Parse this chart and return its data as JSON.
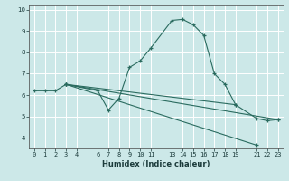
{
  "xlabel": "Humidex (Indice chaleur)",
  "background_color": "#cce8e8",
  "grid_color": "#ffffff",
  "line_color": "#2a6b5f",
  "series": [
    {
      "x": [
        0,
        1,
        2,
        3,
        6,
        7,
        8,
        9,
        10,
        11,
        13,
        14,
        15,
        16,
        17,
        18,
        19,
        21,
        22,
        23
      ],
      "y": [
        6.2,
        6.2,
        6.2,
        6.5,
        6.2,
        5.3,
        5.85,
        7.3,
        7.6,
        8.2,
        9.5,
        9.55,
        9.3,
        8.8,
        7.0,
        6.5,
        5.55,
        4.9,
        4.8,
        4.85
      ]
    },
    {
      "x": [
        3,
        21
      ],
      "y": [
        6.5,
        3.65
      ]
    },
    {
      "x": [
        3,
        19
      ],
      "y": [
        6.5,
        5.55
      ]
    },
    {
      "x": [
        3,
        23
      ],
      "y": [
        6.5,
        4.85
      ]
    }
  ],
  "xlim": [
    -0.5,
    23.5
  ],
  "ylim": [
    3.5,
    10.2
  ],
  "xticks": [
    0,
    1,
    2,
    3,
    4,
    6,
    7,
    8,
    9,
    10,
    11,
    13,
    14,
    15,
    16,
    17,
    18,
    19,
    21,
    22,
    23
  ],
  "xtick_labels": [
    "0",
    "1",
    "2",
    "3",
    "4",
    "6",
    "7",
    "8",
    "9",
    "10",
    "11",
    "13",
    "14",
    "15",
    "16",
    "17",
    "18",
    "19",
    "21",
    "22",
    "23"
  ],
  "yticks": [
    4,
    5,
    6,
    7,
    8,
    9,
    10
  ]
}
